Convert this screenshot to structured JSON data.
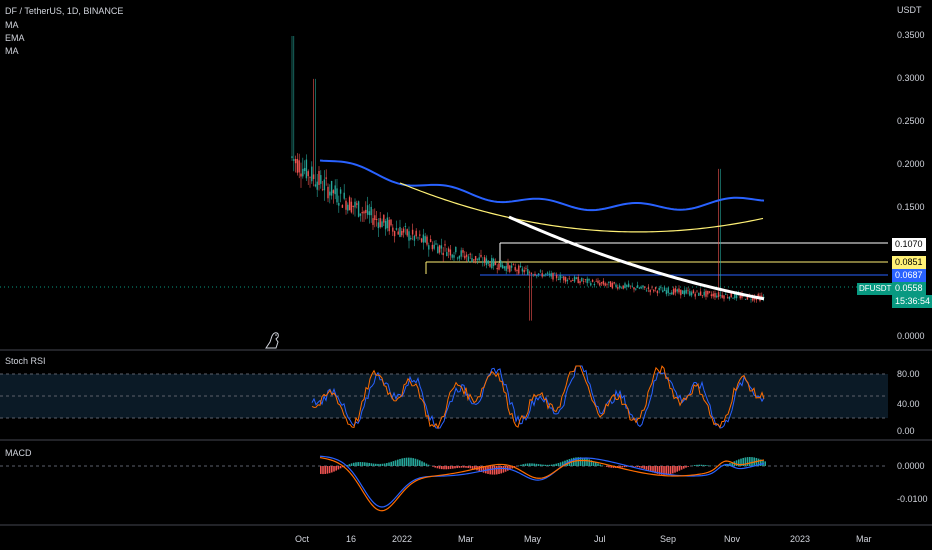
{
  "header": {
    "symbol_line": "DF / TetherUS, 1D, BINANCE",
    "indicators": [
      "MA",
      "EMA",
      "MA"
    ],
    "currency": "USDT"
  },
  "price_axis": {
    "ticks": [
      "0.3500",
      "0.3000",
      "0.2500",
      "0.2000",
      "0.1500",
      "0.0000"
    ],
    "tags": [
      {
        "text": "0.1070",
        "bg": "#ffffff",
        "fg": "#000000"
      },
      {
        "text": "0.0851",
        "bg": "#fff176",
        "fg": "#000000"
      },
      {
        "text": "0.0687",
        "bg": "#2962ff",
        "fg": "#ffffff"
      },
      {
        "text": "0.0558",
        "bg": "#089981",
        "fg": "#ffffff"
      },
      {
        "text": "15:36:54",
        "bg": "#089981",
        "fg": "#ffffff"
      }
    ],
    "symbol_tag": "DFUSDT"
  },
  "stoch_rsi": {
    "label": "Stoch RSI",
    "ticks": [
      "80.00",
      "40.00",
      "0.00"
    ]
  },
  "macd": {
    "label": "MACD",
    "ticks": [
      "0.0000",
      "-0.0100"
    ]
  },
  "time_axis": {
    "ticks": [
      "Oct",
      "16",
      "2022",
      "Mar",
      "May",
      "Jul",
      "Sep",
      "Nov",
      "2023",
      "Mar"
    ]
  },
  "colors": {
    "up": "#26a69a",
    "down": "#ef5350",
    "ma_blue": "#2962ff",
    "ema_yellow": "#fff176",
    "ma_white": "#ffffff"
  },
  "icons": {
    "logo": "tradingview-dino-icon"
  }
}
